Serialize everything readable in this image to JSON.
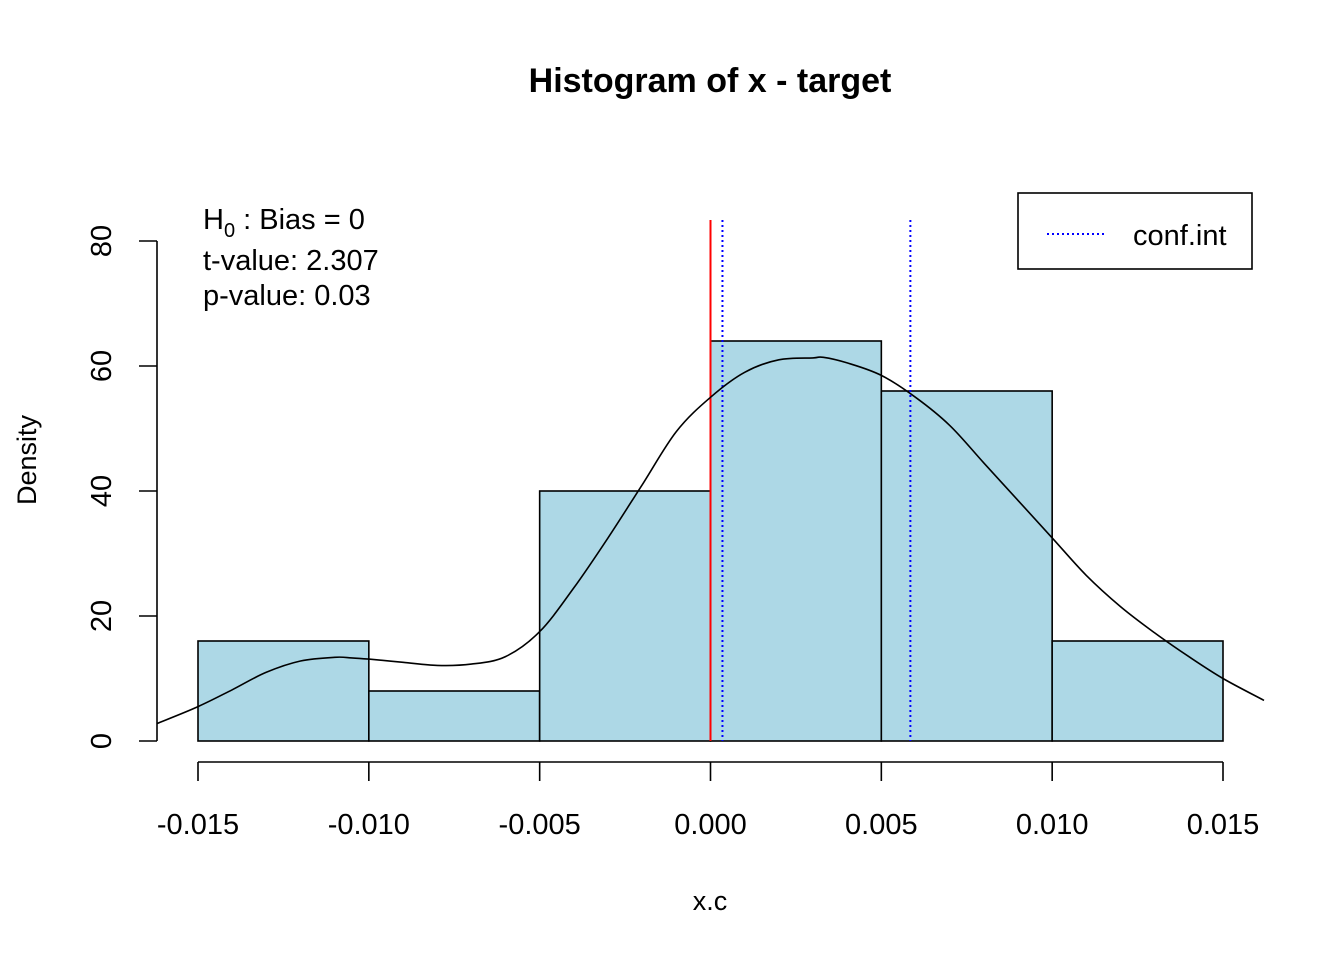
{
  "chart_data": {
    "type": "histogram",
    "title": "Histogram of x - target",
    "xlabel": "x.c",
    "ylabel": "Density",
    "xlim": [
      -0.0162,
      0.0162
    ],
    "ylim": [
      0,
      80
    ],
    "x_ticks": [
      "-0.015",
      "-0.010",
      "-0.005",
      "0.000",
      "0.005",
      "0.010",
      "0.015"
    ],
    "x_tick_values": [
      -0.015,
      -0.01,
      -0.005,
      0.0,
      0.005,
      0.01,
      0.015
    ],
    "y_ticks": [
      "0",
      "20",
      "40",
      "60",
      "80"
    ],
    "y_tick_values": [
      0,
      20,
      40,
      60,
      80
    ],
    "bins": [
      {
        "start": -0.015,
        "end": -0.01,
        "density": 16
      },
      {
        "start": -0.01,
        "end": -0.005,
        "density": 8
      },
      {
        "start": -0.005,
        "end": 0.0,
        "density": 40
      },
      {
        "start": 0.0,
        "end": 0.005,
        "density": 64
      },
      {
        "start": 0.005,
        "end": 0.01,
        "density": 56
      },
      {
        "start": 0.01,
        "end": 0.015,
        "density": 16
      }
    ],
    "density_curve": {
      "x": [
        -0.0162,
        -0.015,
        -0.014,
        -0.013,
        -0.012,
        -0.011,
        -0.0105,
        -0.01,
        -0.009,
        -0.008,
        -0.007,
        -0.006,
        -0.005,
        -0.004,
        -0.003,
        -0.002,
        -0.001,
        0.0,
        0.001,
        0.002,
        0.003,
        0.0033,
        0.004,
        0.005,
        0.006,
        0.007,
        0.008,
        0.009,
        0.01,
        0.011,
        0.012,
        0.013,
        0.014,
        0.015,
        0.0162
      ],
      "y": [
        2.8,
        5.5,
        8.2,
        11.0,
        12.8,
        13.4,
        13.3,
        13.1,
        12.6,
        12.1,
        12.3,
        13.5,
        17.5,
        24.5,
        32.5,
        41.0,
        49.5,
        55.0,
        59.0,
        61.0,
        61.3,
        61.4,
        60.5,
        58.5,
        55.0,
        50.5,
        44.5,
        38.5,
        32.5,
        26.5,
        21.5,
        17.3,
        13.5,
        10.0,
        6.5
      ],
      "color": "#000000"
    },
    "vertical_lines": [
      {
        "name": "H0",
        "x": 0.0,
        "color": "#ff0000",
        "style": "solid"
      },
      {
        "name": "conf.int",
        "x": 0.00035,
        "color": "#0000ff",
        "style": "dotted"
      },
      {
        "name": "conf.int",
        "x": 0.00585,
        "color": "#0000ff",
        "style": "dotted"
      }
    ],
    "bar_fill": "#add8e6",
    "bar_stroke": "#000000",
    "legend": {
      "position": "top-right",
      "entries": [
        {
          "label": "conf.int",
          "color": "#0000ff",
          "style": "dotted"
        }
      ]
    },
    "annotations": {
      "h0_prefix": "H",
      "h0_sub": "0",
      "h0_rest": " : Bias = 0",
      "t_value": "t-value:  2.307",
      "p_value": "p-value:  0.03"
    },
    "grid": false
  }
}
